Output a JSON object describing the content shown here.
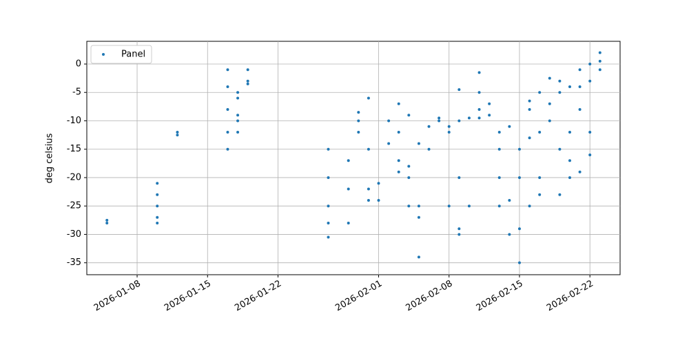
{
  "chart_data": {
    "type": "scatter",
    "ylabel": "deg celsius",
    "x": [
      "2026-01-05",
      "2026-01-05",
      "2026-01-10",
      "2026-01-10",
      "2026-01-10",
      "2026-01-10",
      "2026-01-10",
      "2026-01-12",
      "2026-01-12",
      "2026-01-17",
      "2026-01-17",
      "2026-01-17",
      "2026-01-17",
      "2026-01-17",
      "2026-01-18",
      "2026-01-18",
      "2026-01-18",
      "2026-01-18",
      "2026-01-18",
      "2026-01-19",
      "2026-01-19",
      "2026-01-19",
      "2026-01-27",
      "2026-01-27",
      "2026-01-27",
      "2026-01-27",
      "2026-01-27",
      "2026-01-29",
      "2026-01-29",
      "2026-01-29",
      "2026-01-30",
      "2026-01-30",
      "2026-01-30",
      "2026-01-31",
      "2026-01-31",
      "2026-01-31",
      "2026-01-31",
      "2026-02-01",
      "2026-02-01",
      "2026-02-02",
      "2026-02-02",
      "2026-02-03",
      "2026-02-03",
      "2026-02-03",
      "2026-02-03",
      "2026-02-04",
      "2026-02-04",
      "2026-02-04",
      "2026-02-04",
      "2026-02-05",
      "2026-02-05",
      "2026-02-05",
      "2026-02-05",
      "2026-02-06",
      "2026-02-06",
      "2026-02-07",
      "2026-02-07",
      "2026-02-08",
      "2026-02-08",
      "2026-02-08",
      "2026-02-09",
      "2026-02-09",
      "2026-02-09",
      "2026-02-09",
      "2026-02-09",
      "2026-02-10",
      "2026-02-10",
      "2026-02-11",
      "2026-02-11",
      "2026-02-11",
      "2026-02-11",
      "2026-02-12",
      "2026-02-12",
      "2026-02-13",
      "2026-02-13",
      "2026-02-13",
      "2026-02-13",
      "2026-02-14",
      "2026-02-14",
      "2026-02-14",
      "2026-02-15",
      "2026-02-15",
      "2026-02-15",
      "2026-02-15",
      "2026-02-16",
      "2026-02-16",
      "2026-02-16",
      "2026-02-16",
      "2026-02-17",
      "2026-02-17",
      "2026-02-17",
      "2026-02-17",
      "2026-02-18",
      "2026-02-18",
      "2026-02-18",
      "2026-02-19",
      "2026-02-19",
      "2026-02-19",
      "2026-02-19",
      "2026-02-20",
      "2026-02-20",
      "2026-02-20",
      "2026-02-20",
      "2026-02-21",
      "2026-02-21",
      "2026-02-21",
      "2026-02-21",
      "2026-02-22",
      "2026-02-22",
      "2026-02-22",
      "2026-02-22",
      "2026-02-23",
      "2026-02-23",
      "2026-02-23"
    ],
    "series": [
      {
        "name": "Panel",
        "color": "#1f77b4",
        "values": [
          -27.5,
          -28,
          -21,
          -23,
          -25,
          -27,
          -28,
          -12,
          -12.5,
          -1,
          -4,
          -8,
          -12,
          -15,
          -6,
          -9,
          -12,
          -10,
          -5,
          -1,
          -3,
          -3.5,
          -30.5,
          -25,
          -20,
          -15,
          -28,
          -28,
          -22,
          -17,
          -8.5,
          -12,
          -10,
          -6,
          -15,
          -24,
          -22,
          -21,
          -24,
          -14,
          -10,
          -7,
          -12,
          -17,
          -19,
          -9,
          -18,
          -25,
          -20,
          -34,
          -25,
          -14,
          -27,
          -15,
          -11,
          -9.5,
          -10,
          -25,
          -12,
          -11,
          -4.5,
          -10,
          -20,
          -29,
          -30,
          -9.5,
          -25,
          -1.5,
          -5,
          -8,
          -9.5,
          -7,
          -9,
          -12,
          -20,
          -25,
          -15,
          -11,
          -24,
          -30,
          -35,
          -15,
          -29,
          -20,
          -6.5,
          -13,
          -25,
          -8,
          -5,
          -12,
          -20,
          -23,
          -2.5,
          -7,
          -10,
          -5,
          -15,
          -23,
          -3,
          -4,
          -12,
          -20,
          -17,
          -1,
          -4,
          -19,
          -8,
          0,
          -3,
          -12,
          -16,
          2,
          0.5,
          -1
        ]
      }
    ],
    "xlim": [
      "2026-01-03",
      "2026-02-25"
    ],
    "xticks": [
      "2026-01-08",
      "2026-01-15",
      "2026-01-22",
      "2026-02-01",
      "2026-02-08",
      "2026-02-15",
      "2026-02-22"
    ],
    "ylim": [
      -37.1,
      4
    ],
    "yticks": [
      -35,
      -30,
      -25,
      -20,
      -15,
      -10,
      -5,
      0
    ],
    "grid": true,
    "legend": "upper-left"
  }
}
